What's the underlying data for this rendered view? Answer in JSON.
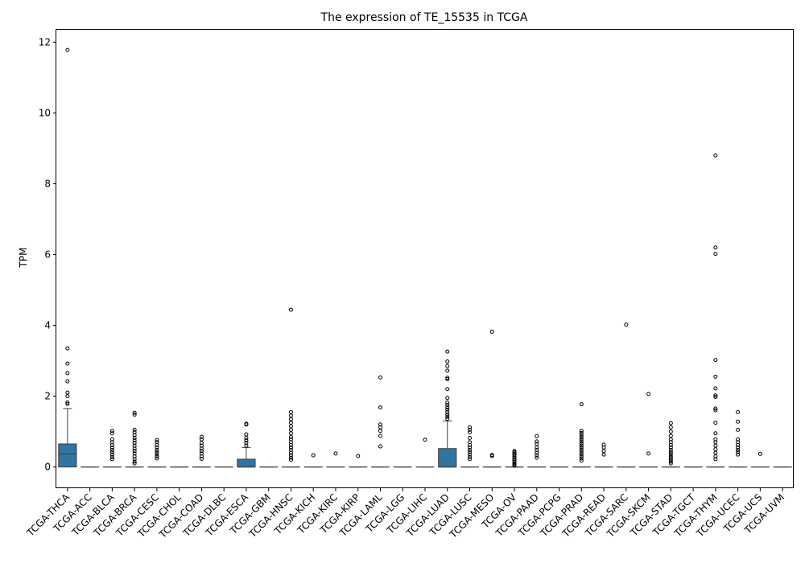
{
  "chart_data": {
    "type": "box",
    "title": "The expression of TE_15535 in TCGA",
    "xlabel": "",
    "ylabel": "TPM",
    "ylim": [
      -0.6,
      12.35
    ],
    "yticks": [
      0,
      2,
      4,
      6,
      8,
      10,
      12
    ],
    "box_color": "#3274a1",
    "grid": false,
    "categories": [
      "TCGA-THCA",
      "TCGA-ACC",
      "TCGA-BLCA",
      "TCGA-BRCA",
      "TCGA-CESC",
      "TCGA-CHOL",
      "TCGA-COAD",
      "TCGA-DLBC",
      "TCGA-ESCA",
      "TCGA-GBM",
      "TCGA-HNSC",
      "TCGA-KICH",
      "TCGA-KIRC",
      "TCGA-KIRP",
      "TCGA-LAML",
      "TCGA-LGG",
      "TCGA-LIHC",
      "TCGA-LUAD",
      "TCGA-LUSC",
      "TCGA-MESO",
      "TCGA-OV",
      "TCGA-PAAD",
      "TCGA-PCPG",
      "TCGA-PRAD",
      "TCGA-READ",
      "TCGA-SARC",
      "TCGA-SKCM",
      "TCGA-STAD",
      "TCGA-TGCT",
      "TCGA-THYM",
      "TCGA-UCEC",
      "TCGA-UCS",
      "TCGA-UVM"
    ],
    "boxes": [
      {
        "q1": 0,
        "median": 0.37,
        "q3": 0.65,
        "whisker_low": 0,
        "whisker_high": 1.65,
        "outliers": [
          11.78,
          3.35,
          2.92,
          2.65,
          2.42,
          2.1,
          2.0,
          1.82,
          1.78
        ]
      },
      {
        "q1": 0,
        "median": 0,
        "q3": 0,
        "whisker_low": 0,
        "whisker_high": 0,
        "outliers": []
      },
      {
        "q1": 0,
        "median": 0,
        "q3": 0,
        "whisker_low": 0,
        "whisker_high": 0,
        "outliers": [
          1.02,
          0.95,
          0.78,
          0.7,
          0.62,
          0.55,
          0.48,
          0.42,
          0.35,
          0.28,
          0.22
        ]
      },
      {
        "q1": 0,
        "median": 0,
        "q3": 0,
        "whisker_low": 0,
        "whisker_high": 0,
        "outliers": [
          1.53,
          1.48,
          1.05,
          0.98,
          0.9,
          0.82,
          0.75,
          0.68,
          0.6,
          0.52,
          0.45,
          0.38,
          0.3,
          0.22,
          0.15,
          0.1
        ]
      },
      {
        "q1": 0,
        "median": 0,
        "q3": 0,
        "whisker_low": 0,
        "whisker_high": 0,
        "outliers": [
          0.76,
          0.7,
          0.62,
          0.55,
          0.48,
          0.42,
          0.36,
          0.3,
          0.24
        ]
      },
      {
        "q1": 0,
        "median": 0,
        "q3": 0,
        "whisker_low": 0,
        "whisker_high": 0,
        "outliers": []
      },
      {
        "q1": 0,
        "median": 0,
        "q3": 0,
        "whisker_low": 0,
        "whisker_high": 0,
        "outliers": [
          0.85,
          0.78,
          0.68,
          0.6,
          0.52,
          0.45,
          0.38,
          0.3,
          0.23
        ]
      },
      {
        "q1": 0,
        "median": 0,
        "q3": 0,
        "whisker_low": 0,
        "whisker_high": 0,
        "outliers": []
      },
      {
        "q1": 0,
        "median": 0,
        "q3": 0.22,
        "whisker_low": 0,
        "whisker_high": 0.55,
        "outliers": [
          1.22,
          1.2,
          0.92,
          0.82,
          0.75,
          0.68,
          0.6
        ]
      },
      {
        "q1": 0,
        "median": 0,
        "q3": 0,
        "whisker_low": 0,
        "whisker_high": 0,
        "outliers": []
      },
      {
        "q1": 0,
        "median": 0,
        "q3": 0,
        "whisker_low": 0,
        "whisker_high": 0,
        "outliers": [
          4.44,
          1.55,
          1.45,
          1.35,
          1.25,
          1.15,
          1.05,
          0.95,
          0.85,
          0.78,
          0.7,
          0.62,
          0.55,
          0.48,
          0.4,
          0.33,
          0.26,
          0.2
        ]
      },
      {
        "q1": 0,
        "median": 0,
        "q3": 0,
        "whisker_low": 0,
        "whisker_high": 0,
        "outliers": [
          0.33
        ]
      },
      {
        "q1": 0,
        "median": 0,
        "q3": 0,
        "whisker_low": 0,
        "whisker_high": 0,
        "outliers": [
          0.38
        ]
      },
      {
        "q1": 0,
        "median": 0,
        "q3": 0,
        "whisker_low": 0,
        "whisker_high": 0,
        "outliers": [
          0.31
        ]
      },
      {
        "q1": 0,
        "median": 0,
        "q3": 0,
        "whisker_low": 0,
        "whisker_high": 0,
        "outliers": [
          2.53,
          1.68,
          1.2,
          1.12,
          1.02,
          0.88,
          0.58
        ]
      },
      {
        "q1": 0,
        "median": 0,
        "q3": 0,
        "whisker_low": 0,
        "whisker_high": 0,
        "outliers": []
      },
      {
        "q1": 0,
        "median": 0,
        "q3": 0,
        "whisker_low": 0,
        "whisker_high": 0,
        "outliers": [
          0.77
        ]
      },
      {
        "q1": 0,
        "median": 0,
        "q3": 0.52,
        "whisker_low": 0,
        "whisker_high": 1.3,
        "outliers": [
          3.26,
          2.98,
          2.85,
          2.72,
          2.52,
          2.48,
          2.2,
          1.95,
          1.82,
          1.75,
          1.68,
          1.62,
          1.55,
          1.48,
          1.42,
          1.36
        ]
      },
      {
        "q1": 0,
        "median": 0,
        "q3": 0,
        "whisker_low": 0,
        "whisker_high": 0,
        "outliers": [
          1.12,
          1.05,
          0.98,
          0.82,
          0.7,
          0.62,
          0.55,
          0.48,
          0.42,
          0.35,
          0.28,
          0.22
        ]
      },
      {
        "q1": 0,
        "median": 0,
        "q3": 0,
        "whisker_low": 0,
        "whisker_high": 0,
        "outliers": [
          3.82,
          0.34,
          0.31
        ]
      },
      {
        "q1": 0,
        "median": 0,
        "q3": 0,
        "whisker_low": 0,
        "whisker_high": 0,
        "outliers": [
          0.45,
          0.42,
          0.38,
          0.34,
          0.3,
          0.26,
          0.22,
          0.18,
          0.14,
          0.1,
          0.07,
          0.04
        ]
      },
      {
        "q1": 0,
        "median": 0,
        "q3": 0,
        "whisker_low": 0,
        "whisker_high": 0,
        "outliers": [
          0.87,
          0.72,
          0.65,
          0.55,
          0.48,
          0.4,
          0.33,
          0.26
        ]
      },
      {
        "q1": 0,
        "median": 0,
        "q3": 0,
        "whisker_low": 0,
        "whisker_high": 0,
        "outliers": []
      },
      {
        "q1": 0,
        "median": 0,
        "q3": 0,
        "whisker_low": 0,
        "whisker_high": 0,
        "outliers": [
          1.77,
          1.02,
          0.96,
          0.9,
          0.84,
          0.78,
          0.72,
          0.66,
          0.6,
          0.54,
          0.48,
          0.42,
          0.36,
          0.3,
          0.24,
          0.18
        ]
      },
      {
        "q1": 0,
        "median": 0,
        "q3": 0,
        "whisker_low": 0,
        "whisker_high": 0,
        "outliers": [
          0.63,
          0.55,
          0.45,
          0.35
        ]
      },
      {
        "q1": 0,
        "median": 0,
        "q3": 0,
        "whisker_low": 0,
        "whisker_high": 0,
        "outliers": [
          4.02
        ]
      },
      {
        "q1": 0,
        "median": 0,
        "q3": 0,
        "whisker_low": 0,
        "whisker_high": 0,
        "outliers": [
          2.06,
          0.38
        ]
      },
      {
        "q1": 0,
        "median": 0,
        "q3": 0,
        "whisker_low": 0,
        "whisker_high": 0,
        "outliers": [
          1.24,
          1.12,
          1.0,
          0.88,
          0.78,
          0.7,
          0.62,
          0.55,
          0.48,
          0.42,
          0.36,
          0.3,
          0.25,
          0.2,
          0.15,
          0.1
        ]
      },
      {
        "q1": 0,
        "median": 0,
        "q3": 0,
        "whisker_low": 0,
        "whisker_high": 0,
        "outliers": []
      },
      {
        "q1": 0,
        "median": 0,
        "q3": 0,
        "whisker_low": 0,
        "whisker_high": 0,
        "outliers": [
          8.8,
          6.2,
          6.02,
          3.02,
          2.55,
          2.22,
          2.02,
          1.98,
          1.65,
          1.6,
          1.25,
          0.95,
          0.78,
          0.7,
          0.6,
          0.5,
          0.4,
          0.3,
          0.22
        ]
      },
      {
        "q1": 0,
        "median": 0,
        "q3": 0,
        "whisker_low": 0,
        "whisker_high": 0,
        "outliers": [
          1.55,
          1.28,
          1.05,
          0.78,
          0.7,
          0.62,
          0.55,
          0.48,
          0.42,
          0.35
        ]
      },
      {
        "q1": 0,
        "median": 0,
        "q3": 0,
        "whisker_low": 0,
        "whisker_high": 0,
        "outliers": [
          0.37
        ]
      },
      {
        "q1": 0,
        "median": 0,
        "q3": 0,
        "whisker_low": 0,
        "whisker_high": 0,
        "outliers": []
      }
    ]
  }
}
